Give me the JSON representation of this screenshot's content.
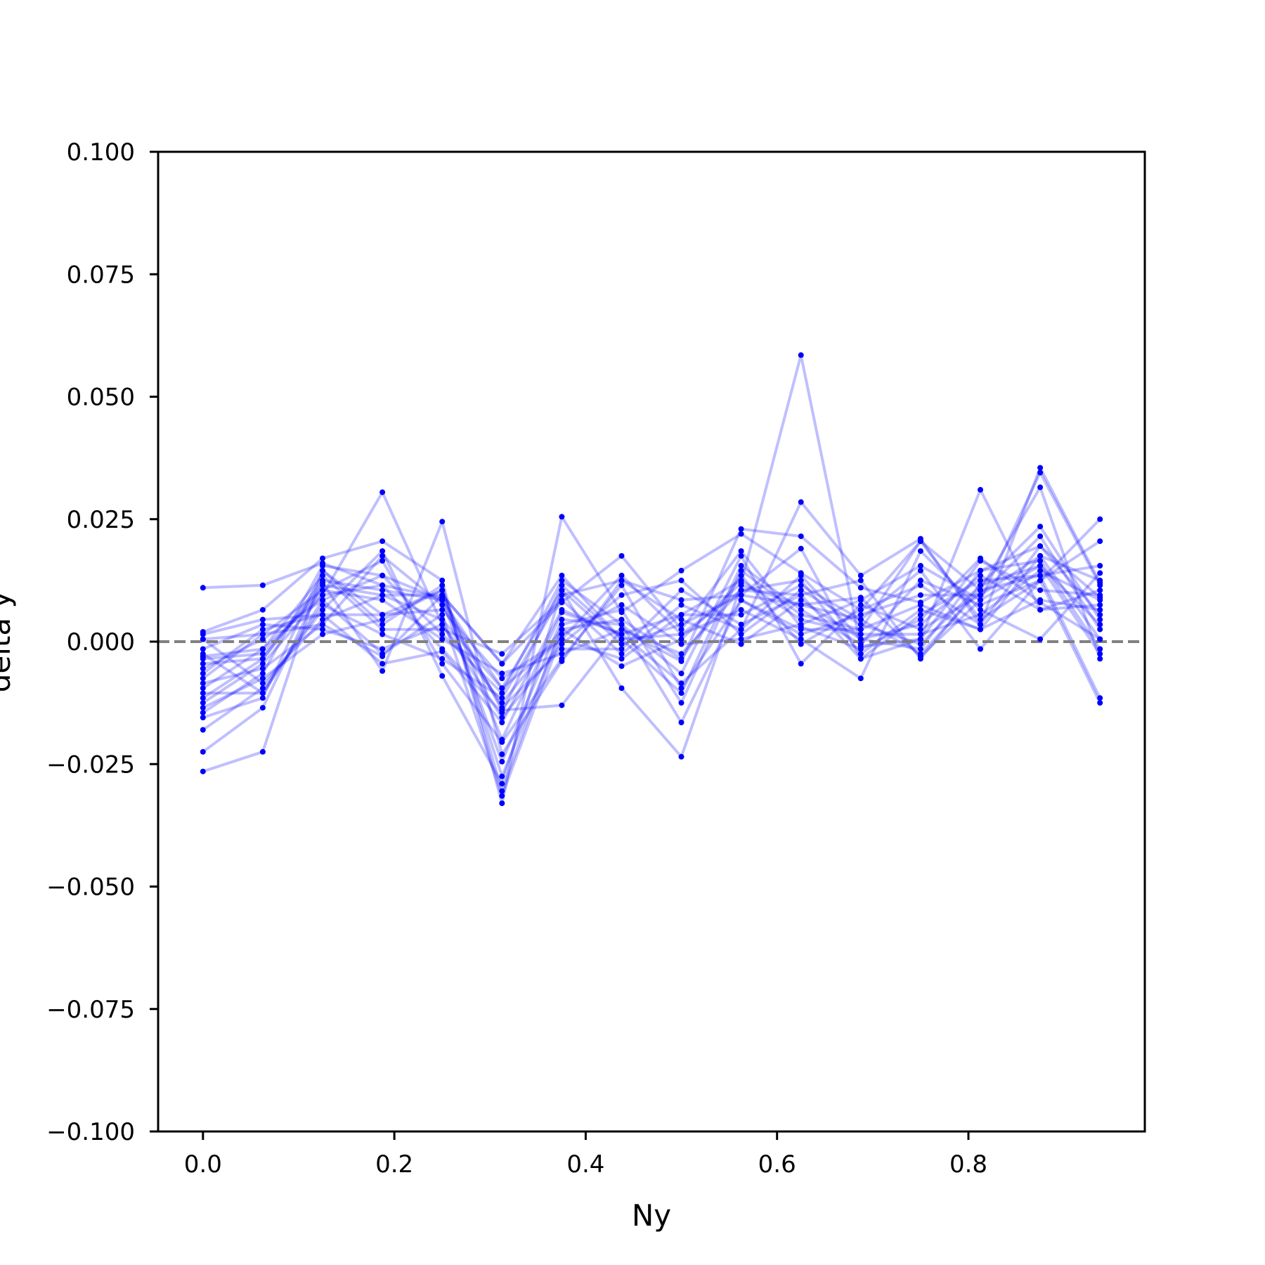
{
  "chart_data": {
    "type": "line",
    "title": "",
    "xlabel": "Ny",
    "ylabel": "delta y",
    "xlim": [
      -0.046875,
      0.984375
    ],
    "ylim": [
      -0.1,
      0.1
    ],
    "xticks": [
      0.0,
      0.2,
      0.4,
      0.6,
      0.8
    ],
    "xtick_labels": [
      "0.0",
      "0.2",
      "0.4",
      "0.6",
      "0.8"
    ],
    "yticks": [
      0.1,
      0.075,
      0.05,
      0.025,
      0.0,
      -0.025,
      -0.05,
      -0.075,
      -0.1
    ],
    "ytick_labels": [
      "0.100",
      "0.075",
      "0.050",
      "0.025",
      "0.000",
      "−0.025",
      "−0.050",
      "−0.075",
      "−0.100"
    ],
    "grid": false,
    "legend": false,
    "reference_line": {
      "y": 0.0,
      "style": "dashed",
      "color": "#808080"
    },
    "colors": {
      "series": "#0000ff",
      "reference": "#808080",
      "axes": "#000000"
    },
    "x": [
      0.0,
      0.0625,
      0.125,
      0.1875,
      0.25,
      0.3125,
      0.375,
      0.4375,
      0.5,
      0.5625,
      0.625,
      0.6875,
      0.75,
      0.8125,
      0.875,
      0.9375
    ],
    "series": [
      {
        "values": [
          0.011,
          0.0115,
          0.016,
          0.0115,
          0.009,
          -0.014,
          -0.013,
          0.0025,
          -0.004,
          0.023,
          0.0215,
          0.011,
          0.008,
          0.0145,
          0.0195,
          0.009
        ]
      },
      {
        "values": [
          0.002,
          0.0065,
          0.017,
          0.0205,
          0.0125,
          -0.033,
          0.0255,
          0.006,
          0.0145,
          0.022,
          0.014,
          0.0065,
          0.0205,
          0.0045,
          0.0125,
          0.025
        ]
      },
      {
        "values": [
          -0.003,
          -0.0015,
          0.0095,
          0.0305,
          0.0035,
          -0.0125,
          0.0025,
          -0.005,
          0.0005,
          0.012,
          0.0585,
          -0.001,
          0.0005,
          0.031,
          0.0065,
          0.0075
        ]
      },
      {
        "values": [
          -0.0265,
          -0.0225,
          0.0145,
          0.0055,
          0.0105,
          -0.02,
          0.006,
          0.0015,
          -0.0085,
          0.0025,
          0.0285,
          0.0135,
          0.021,
          0.0035,
          0.0355,
          0.012
        ]
      },
      {
        "values": [
          -0.0225,
          -0.0135,
          0.012,
          -0.006,
          0.0245,
          -0.023,
          -0.004,
          0.0125,
          0.0085,
          0.0095,
          0.019,
          -0.0035,
          0.0055,
          0.0125,
          0.0135,
          -0.0115
        ]
      },
      {
        "values": [
          -0.018,
          -0.0095,
          0.0065,
          0.0185,
          -0.007,
          -0.029,
          0.0105,
          -0.0095,
          -0.0235,
          0.0115,
          0.0075,
          0.009,
          -0.003,
          0.0085,
          0.0345,
          0.0115
        ]
      },
      {
        "values": [
          0.0005,
          0.0015,
          0.0035,
          -0.003,
          0.0095,
          -0.0045,
          0.008,
          0.0175,
          0.0025,
          0.0185,
          0.003,
          -0.0015,
          0.0045,
          0.017,
          0.008,
          0.0005
        ]
      },
      {
        "values": [
          -0.0115,
          -0.0035,
          0.0115,
          0.0095,
          0.0045,
          -0.0095,
          0.0005,
          0.0135,
          0.0015,
          0.0065,
          0.0005,
          -0.0075,
          0.0185,
          0.0065,
          0.0005,
          0.014
        ]
      },
      {
        "values": [
          -0.0055,
          0.0005,
          0.0085,
          0.0135,
          0.0015,
          -0.0105,
          0.0125,
          0.0035,
          -0.0065,
          0.0175,
          -0.0045,
          0.0075,
          0.0025,
          0.0095,
          0.0215,
          0.0025
        ]
      },
      {
        "values": [
          0.0015,
          0.0045,
          0.0055,
          -0.0045,
          -0.002,
          -0.0165,
          0.0065,
          0.0015,
          0.0055,
          0.0055,
          0.0115,
          0.0045,
          0.0145,
          -0.0015,
          0.0125,
          0.0205
        ]
      },
      {
        "values": [
          -0.0085,
          -0.0055,
          0.0035,
          0.0175,
          0.0075,
          -0.0135,
          -0.0015,
          -0.0015,
          0.0105,
          0.0035,
          0.0095,
          0.0125,
          -0.0035,
          0.0115,
          0.0235,
          0.0045
        ]
      },
      {
        "values": [
          -0.0155,
          -0.0115,
          0.0145,
          0.0035,
          0.0115,
          -0.0305,
          0.0035,
          0.0065,
          -0.0125,
          0.0145,
          0.0055,
          0.0025,
          0.0205,
          0.0105,
          0.0315,
          -0.0035
        ]
      },
      {
        "values": [
          -0.0035,
          -0.0025,
          0.0105,
          0.0085,
          0.0005,
          -0.0065,
          -0.0025,
          0.0025,
          -0.0025,
          0.0105,
          0.0125,
          -0.0025,
          0.0065,
          0.0025,
          0.0085,
          0.0065
        ]
      },
      {
        "values": [
          -0.0105,
          -0.0105,
          0.0075,
          0.0015,
          -0.0035,
          -0.0115,
          0.0095,
          0.0125,
          0.0045,
          -0.0005,
          0.0085,
          0.0005,
          -0.0015,
          0.0145,
          0.0165,
          -0.0015
        ]
      },
      {
        "values": [
          -0.0045,
          -0.0035,
          0.0125,
          0.0105,
          0.0085,
          -0.0245,
          0.0045,
          0.0035,
          -0.0165,
          0.0085,
          0.0015,
          0.0055,
          0.0095,
          0.0095,
          0.0175,
          0.0125
        ]
      },
      {
        "values": [
          -0.0065,
          0.0025,
          0.0055,
          0.0055,
          0.0065,
          -0.0075,
          0.0005,
          -0.0035,
          0.0055,
          0.0125,
          0.0045,
          0.0015,
          0.0015,
          0.0055,
          0.0145,
          0.0085
        ]
      },
      {
        "values": [
          -0.0125,
          -0.0045,
          0.0095,
          0.0115,
          -0.0015,
          -0.0145,
          0.0115,
          0.0005,
          -0.0105,
          0.0155,
          0.0065,
          -0.0005,
          0.0125,
          0.0075,
          0.0125,
          -0.0125
        ]
      },
      {
        "values": [
          -0.0015,
          0.0035,
          0.0025,
          -0.0015,
          0.0035,
          -0.0155,
          -0.0005,
          0.0095,
          0.0125,
          0.0015,
          0.0105,
          0.0035,
          -0.0005,
          0.0115,
          0.0155,
          0.0035
        ]
      },
      {
        "values": [
          -0.0135,
          -0.0075,
          0.0015,
          0.0045,
          0.0105,
          -0.0275,
          0.0025,
          0.0045,
          -0.0035,
          0.0135,
          -0.0005,
          0.0065,
          0.0115,
          0.0035,
          0.0195,
          0.0055
        ]
      },
      {
        "values": [
          -0.0095,
          -0.0015,
          0.0135,
          0.0025,
          0.0025,
          -0.0025,
          0.0085,
          -0.0025,
          0.0075,
          0.0025,
          0.0135,
          0.0005,
          0.0035,
          0.0135,
          0.0065,
          0.0105
        ]
      },
      {
        "values": [
          -0.0075,
          0.0015,
          0.0105,
          0.0165,
          -0.0045,
          -0.0205,
          -0.0035,
          0.0115,
          -0.0095,
          0.0085,
          0.0025,
          0.0025,
          0.0075,
          0.0025,
          0.0175,
          0.0005
        ]
      },
      {
        "values": [
          0.0005,
          -0.0085,
          0.0045,
          0.0095,
          0.0095,
          -0.0045,
          0.0135,
          0.0005,
          0.0015,
          0.0105,
          0.0095,
          -0.0035,
          0.0005,
          0.0165,
          0.0105,
          0.0095
        ]
      },
      {
        "values": [
          -0.0025,
          -0.0105,
          0.0085,
          -0.0025,
          0.0055,
          -0.0315,
          0.0015,
          0.0075,
          -0.0005,
          0.0005,
          0.0035,
          0.0085,
          0.0155,
          0.0085,
          0.0155,
          -0.0025
        ]
      },
      {
        "values": [
          -0.0145,
          -0.0065,
          0.0155,
          0.0135,
          0.0085,
          -0.0095,
          0.0105,
          -0.0005,
          0.0035,
          0.0095,
          0.0075,
          0.0045,
          -0.0025,
          0.0105,
          0.0135,
          0.0155
        ]
      }
    ]
  }
}
